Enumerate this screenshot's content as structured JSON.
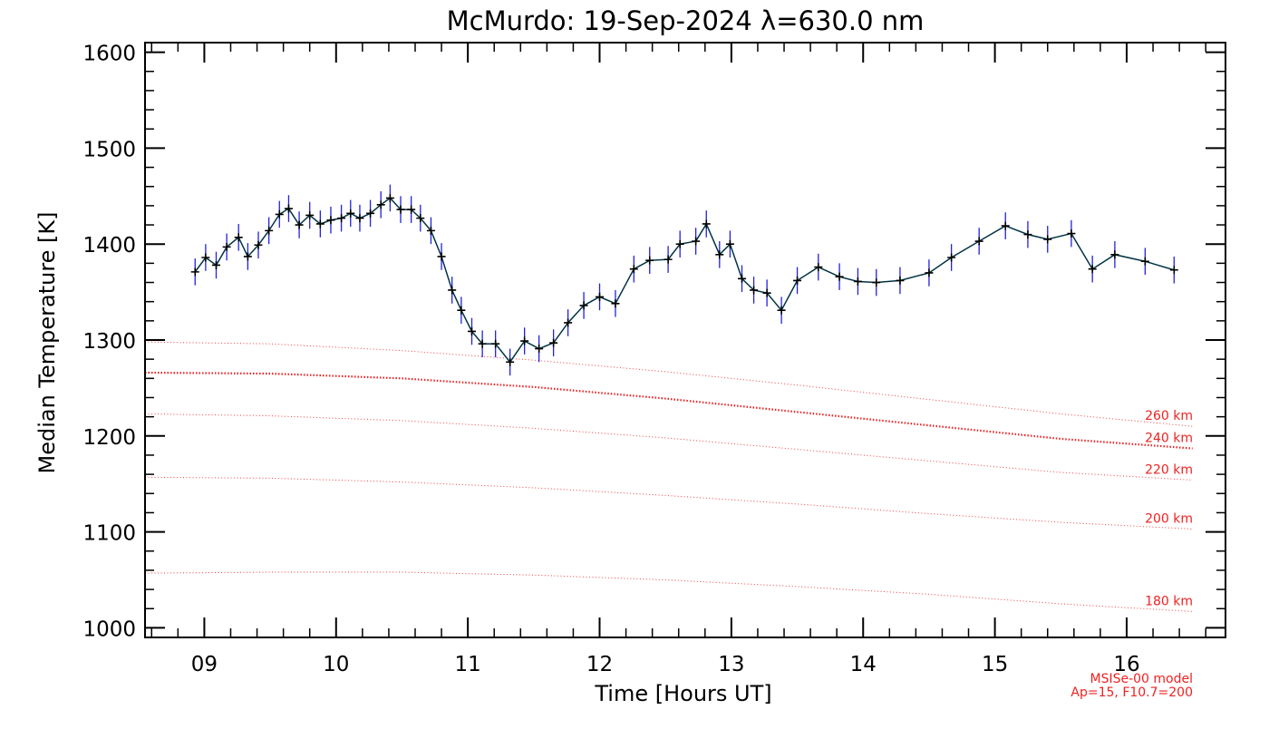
{
  "chart_data": {
    "type": "line",
    "title": "McMurdo: 19-Sep-2024 λ=630.0 nm",
    "xlabel": "Time [Hours UT]",
    "ylabel": "Median Temperature [K]",
    "xlim": [
      8.55,
      16.75
    ],
    "ylim": [
      990,
      1610
    ],
    "x_ticks": [
      9,
      10,
      11,
      12,
      13,
      14,
      15,
      16
    ],
    "x_tick_labels": [
      "09",
      "10",
      "11",
      "12",
      "13",
      "14",
      "15",
      "16"
    ],
    "y_ticks": [
      1000,
      1100,
      1200,
      1300,
      1400,
      1500,
      1600
    ],
    "y_tick_labels": [
      "1000",
      "1100",
      "1200",
      "1300",
      "1400",
      "1500",
      "1600"
    ],
    "colors": {
      "data_line": "#003344",
      "marker": "#000000",
      "error_bar": "#2222dd",
      "model": "#ee2222",
      "axis": "#000000"
    },
    "series": [
      {
        "kind": "measurement",
        "x": [
          8.93,
          9.01,
          9.09,
          9.17,
          9.26,
          9.33,
          9.41,
          9.49,
          9.57,
          9.64,
          9.72,
          9.8,
          9.88,
          9.96,
          10.04,
          10.11,
          10.18,
          10.26,
          10.34,
          10.41,
          10.49,
          10.57,
          10.64,
          10.72,
          10.8,
          10.88,
          10.95,
          11.03,
          11.11,
          11.21,
          11.32,
          11.43,
          11.54,
          11.65,
          11.76,
          11.88,
          12.0,
          12.12,
          12.26,
          12.38,
          12.52,
          12.61,
          12.73,
          12.81,
          12.91,
          12.99,
          13.08,
          13.17,
          13.27,
          13.38,
          13.5,
          13.66,
          13.82,
          13.96,
          14.1,
          14.28,
          14.5,
          14.67,
          14.88,
          15.08,
          15.25,
          15.4,
          15.58,
          15.74,
          15.91,
          16.14,
          16.36
        ],
        "values": [
          1371,
          1386,
          1378,
          1397,
          1407,
          1387,
          1399,
          1414,
          1431,
          1437,
          1420,
          1430,
          1421,
          1425,
          1427,
          1432,
          1427,
          1432,
          1441,
          1448,
          1436,
          1436,
          1427,
          1414,
          1387,
          1352,
          1331,
          1309,
          1296,
          1296,
          1277,
          1299,
          1291,
          1297,
          1318,
          1336,
          1345,
          1338,
          1374,
          1383,
          1384,
          1400,
          1403,
          1421,
          1389,
          1400,
          1364,
          1352,
          1349,
          1331,
          1362,
          1376,
          1366,
          1361,
          1360,
          1362,
          1370,
          1386,
          1403,
          1419,
          1410,
          1405,
          1411,
          1374,
          1389,
          1382,
          1373
        ],
        "error": 14
      },
      {
        "kind": "model",
        "name": "260 km",
        "emphasis": false,
        "x": [
          8.55,
          9.5,
          10.5,
          11.5,
          12.5,
          13.5,
          14.5,
          15.5,
          16.5
        ],
        "values": [
          1298,
          1296,
          1289,
          1279,
          1267,
          1253,
          1238,
          1223,
          1210
        ]
      },
      {
        "kind": "model",
        "name": "240 km",
        "emphasis": true,
        "x": [
          8.55,
          9.5,
          10.5,
          11.5,
          12.5,
          13.5,
          14.5,
          15.5,
          16.5
        ],
        "values": [
          1266,
          1265,
          1260,
          1251,
          1239,
          1225,
          1211,
          1197,
          1187
        ]
      },
      {
        "kind": "model",
        "name": "220 km",
        "emphasis": false,
        "x": [
          8.55,
          9.5,
          10.5,
          11.5,
          12.5,
          13.5,
          14.5,
          15.5,
          16.5
        ],
        "values": [
          1223,
          1221,
          1216,
          1208,
          1198,
          1186,
          1174,
          1162,
          1154
        ]
      },
      {
        "kind": "model",
        "name": "200 km",
        "emphasis": false,
        "x": [
          8.55,
          9.5,
          10.5,
          11.5,
          12.5,
          13.5,
          14.5,
          15.5,
          16.5
        ],
        "values": [
          1157,
          1156,
          1152,
          1146,
          1138,
          1129,
          1119,
          1110,
          1103
        ]
      },
      {
        "kind": "model",
        "name": "180 km",
        "emphasis": false,
        "x": [
          8.55,
          9.5,
          10.5,
          11.5,
          12.5,
          13.5,
          14.5,
          15.5,
          16.5
        ],
        "values": [
          1057,
          1058,
          1058,
          1055,
          1050,
          1043,
          1035,
          1025,
          1017
        ]
      }
    ],
    "footnote": [
      "MSISe-00 model",
      "Ap=15, F10.7=200"
    ]
  }
}
